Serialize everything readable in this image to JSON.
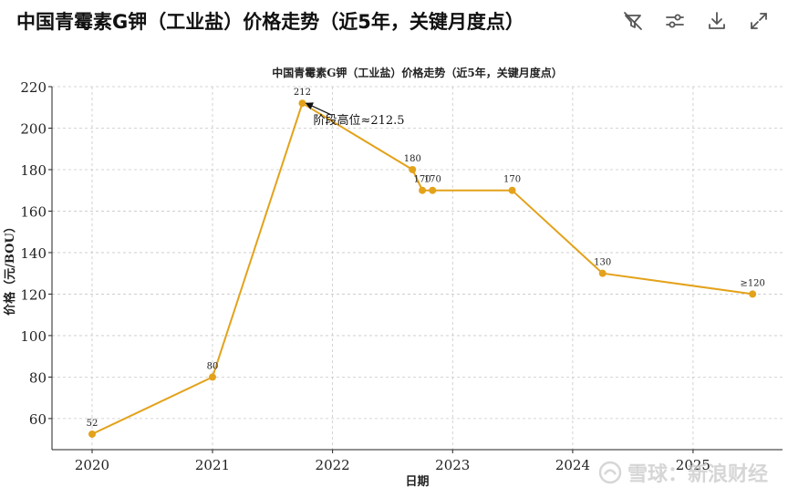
{
  "header": {
    "title": "中国青霉素G钾（工业盐）价格走势（近5年，关键月度点）"
  },
  "toolbar": {
    "icons": [
      "filter-off-icon",
      "sliders-icon",
      "download-icon",
      "expand-icon"
    ]
  },
  "watermark": {
    "text": "雪球：新浪财经"
  },
  "chart_data": {
    "type": "line",
    "title": "中国青霉素G钾（工业盐）价格走势（近5年，关键月度点）",
    "xlabel": "日期",
    "ylabel": "价格（元/BOU）",
    "xlim": [
      "2019-09-01",
      "2025-09-30"
    ],
    "ylim": [
      45,
      220
    ],
    "x_ticks": [
      "2020",
      "2021",
      "2022",
      "2023",
      "2024",
      "2025"
    ],
    "y_ticks": [
      60,
      80,
      100,
      120,
      140,
      160,
      180,
      200,
      220
    ],
    "grid": true,
    "color": "#E3A21A",
    "series": [
      {
        "points": [
          {
            "x": "2020-01-01",
            "y": 52.5,
            "label": "52"
          },
          {
            "x": "2021-01-01",
            "y": 80,
            "label": "80"
          },
          {
            "x": "2021-10-01",
            "y": 212,
            "label": "212"
          },
          {
            "x": "2022-09-01",
            "y": 180,
            "label": "180"
          },
          {
            "x": "2022-10-01",
            "y": 170,
            "label": "170"
          },
          {
            "x": "2022-11-01",
            "y": 170,
            "label": "170"
          },
          {
            "x": "2023-07-01",
            "y": 170,
            "label": "170"
          },
          {
            "x": "2024-04-01",
            "y": 130,
            "label": "130"
          },
          {
            "x": "2025-07-01",
            "y": 120,
            "label": "≥120"
          }
        ]
      }
    ],
    "annotation": {
      "text": "阶段高位≈212.5",
      "x": "2021-10-01",
      "y": 212.5
    }
  }
}
